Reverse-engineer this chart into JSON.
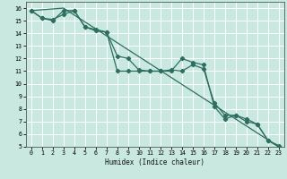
{
  "xlabel": "Humidex (Indice chaleur)",
  "ylabel": "",
  "xlim": [
    -0.5,
    23.5
  ],
  "ylim": [
    5,
    16.5
  ],
  "xticks": [
    0,
    1,
    2,
    3,
    4,
    5,
    6,
    7,
    8,
    9,
    10,
    11,
    12,
    13,
    14,
    15,
    16,
    17,
    18,
    19,
    20,
    21,
    22,
    23
  ],
  "yticks": [
    5,
    6,
    7,
    8,
    9,
    10,
    11,
    12,
    13,
    14,
    15,
    16
  ],
  "bg_color": "#c8e8e0",
  "grid_color": "#ffffff",
  "line_color": "#2e6e60",
  "line1_x": [
    0,
    1,
    2,
    3,
    4,
    5,
    6,
    7,
    8,
    9,
    10,
    11,
    12,
    13,
    14,
    15,
    16,
    17,
    18,
    19,
    20,
    21,
    22,
    23
  ],
  "line1_y": [
    15.8,
    15.2,
    15.0,
    15.8,
    15.8,
    14.5,
    14.2,
    14.1,
    11.0,
    11.0,
    11.0,
    11.0,
    11.0,
    11.1,
    11.0,
    11.5,
    11.2,
    8.5,
    7.5,
    7.5,
    7.0,
    6.8,
    5.5,
    5.0
  ],
  "line2_x": [
    0,
    1,
    2,
    3,
    4,
    5,
    6,
    7,
    8,
    9,
    10,
    11,
    12,
    13,
    14,
    15,
    16,
    17,
    18,
    19,
    20,
    21,
    22,
    23
  ],
  "line2_y": [
    15.8,
    15.2,
    15.1,
    15.5,
    15.8,
    14.5,
    14.3,
    14.1,
    12.2,
    12.0,
    11.1,
    11.0,
    11.0,
    11.0,
    12.0,
    11.7,
    11.5,
    8.2,
    7.2,
    7.5,
    7.2,
    6.8,
    5.5,
    5.1
  ],
  "line3_x": [
    0,
    3,
    23
  ],
  "line3_y": [
    15.8,
    16.0,
    5.0
  ]
}
